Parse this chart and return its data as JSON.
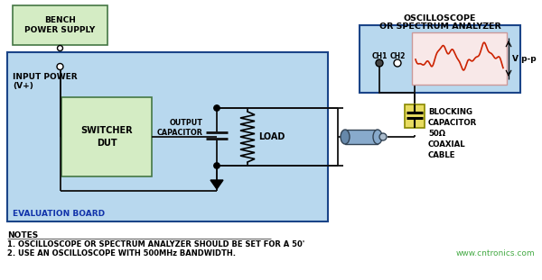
{
  "bg_color": "#ffffff",
  "eval_board_color": "#b8d8ee",
  "eval_board_edge": "#1a4488",
  "bench_ps_color": "#d4ecc4",
  "bench_ps_edge": "#447744",
  "switcher_color": "#d4ecc4",
  "switcher_edge": "#447744",
  "oscilloscope_color": "#b8d8ee",
  "oscilloscope_edge": "#1a4488",
  "blocking_cap_color": "#e8dc60",
  "blocking_cap_edge": "#888800",
  "coax_color": "#88aacc",
  "screen_color": "#f8e8e8",
  "line_color": "#111111",
  "red_wave_color": "#cc2200",
  "note1": "1. OSCILLOSCOPE OR SPECTRUM ANALYZER SHOULD BE SET FOR A 50'",
  "note2": "2. USE AN OSCILLOSCOPE WITH 500MHz BANDWIDTH.",
  "watermark": "www.cntronics.com",
  "title_osc_line1": "OSCILLOSCOPE",
  "title_osc_line2": "OR SPECTRUM ANALYZER",
  "bench_ps_text": "BENCH\nPOWER SUPPLY",
  "switcher_text": "SWITCHER\nDUT",
  "output_cap_text": "OUTPUT\nCAPACITOR",
  "load_text": "LOAD",
  "input_power_line1": "INPUT POWER",
  "input_power_line2": "(V+)",
  "eval_board_text": "EVALUATION BOARD",
  "blocking_cap_text": "BLOCKING\nCAPACITOR",
  "coax_text_line1": "50Ω",
  "coax_text_line2": "COAXIAL",
  "coax_text_line3": "CABLE",
  "ch1_text": "CH1",
  "ch2_text": "CH2",
  "vpp_text": "V p-p",
  "notes_header": "NOTES"
}
